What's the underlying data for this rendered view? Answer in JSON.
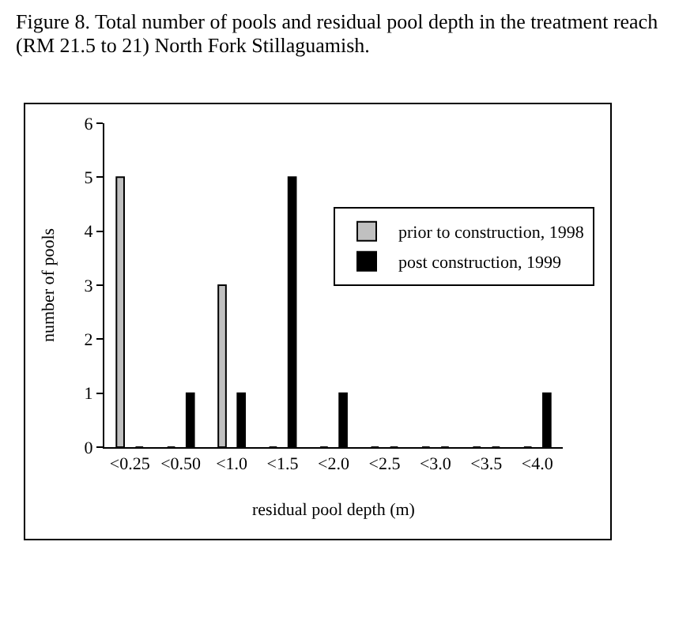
{
  "chart_data": {
    "type": "bar",
    "title": "Figure 8. Total number of pools and residual pool depth in the treatment reach (RM 21.5 to 21) North Fork Stillaguamish.",
    "xlabel": "residual pool depth (m)",
    "ylabel": "number of pools",
    "categories": [
      "<0.25",
      "<0.50",
      "<1.0",
      "<1.5",
      "<2.0",
      "<2.5",
      "<3.0",
      "<3.5",
      "<4.0"
    ],
    "series": [
      {
        "name": "prior to construction, 1998",
        "color": "#c0c0c0",
        "values": [
          5,
          0,
          3,
          0,
          0,
          0,
          0,
          0,
          0
        ]
      },
      {
        "name": "post construction, 1999",
        "color": "#000000",
        "values": [
          0,
          1,
          1,
          5,
          1,
          0,
          0,
          0,
          1
        ]
      }
    ],
    "ylim": [
      0,
      6
    ],
    "yticks": [
      0,
      1,
      2,
      3,
      4,
      5,
      6
    ],
    "grid": false,
    "legend": "right"
  }
}
